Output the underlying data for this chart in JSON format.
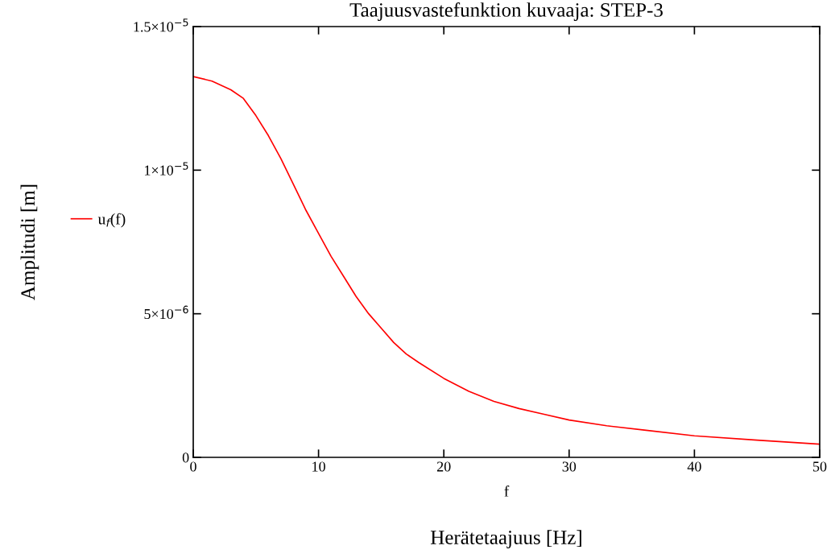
{
  "chart_data": {
    "type": "line",
    "title": "Taajuusvastefunktion kuvaaja: STEP-3",
    "xlabel": "f",
    "ylabel": "Amplitudi [m]",
    "annotations": [
      "Herätetaajuus [Hz]"
    ],
    "x": [
      0,
      1.5,
      3,
      4,
      5,
      6,
      7,
      8,
      9,
      10,
      11,
      12,
      13,
      14,
      15,
      16,
      17,
      18,
      20,
      22,
      24,
      26,
      28,
      30,
      33,
      36,
      40,
      45,
      50
    ],
    "series": [
      {
        "name": "u$_{f}$(f)",
        "color": "#ff0000",
        "values": [
          1.326e-05,
          1.31e-05,
          1.28e-05,
          1.25e-05,
          1.19e-05,
          1.12e-05,
          1.04e-05,
          9.5e-06,
          8.6e-06,
          7.8e-06,
          7e-06,
          6.3e-06,
          5.6e-06,
          5e-06,
          4.5e-06,
          4e-06,
          3.6e-06,
          3.3e-06,
          2.75e-06,
          2.3e-06,
          1.95e-06,
          1.7e-06,
          1.5e-06,
          1.3e-06,
          1.1e-06,
          9.5e-07,
          7.5e-07,
          6e-07,
          4.6e-07
        ]
      }
    ],
    "xlim": [
      0,
      50
    ],
    "xticks": [
      0,
      10,
      20,
      30,
      40,
      50
    ],
    "ylim": [
      0,
      1.5e-05
    ],
    "yticks": [
      {
        "value": 0,
        "label": "0"
      },
      {
        "value": 5e-06,
        "label": "5×10$^{−6}$"
      },
      {
        "value": 1e-05,
        "label": "1×10$^{−5}$"
      },
      {
        "value": 1.5e-05,
        "label": "1.5×10$^{−5}$"
      }
    ],
    "grid": false,
    "legend": "left",
    "marker": "none",
    "line_style": "solid"
  }
}
